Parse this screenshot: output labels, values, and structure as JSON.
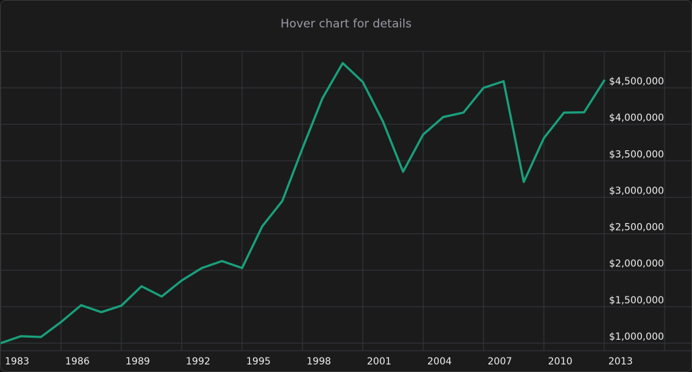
{
  "header": {
    "hint": "Hover chart for details"
  },
  "colors": {
    "background": "#1b1b1b",
    "grid": "#353840",
    "line": "#19a07d",
    "text": "#eeeeee",
    "hint": "#9a9aa8"
  },
  "chart_data": {
    "type": "line",
    "title": "",
    "xlabel": "",
    "ylabel": "",
    "xlim": [
      1982,
      2016
    ],
    "ylim": [
      900000,
      5000000
    ],
    "x_ticks": [
      1983,
      1986,
      1989,
      1992,
      1995,
      1998,
      2001,
      2004,
      2007,
      2010,
      2013
    ],
    "x_tick_labels": [
      "1983",
      "1986",
      "1989",
      "1992",
      "1995",
      "1998",
      "2001",
      "2004",
      "2007",
      "2010",
      "2013"
    ],
    "y_ticks": [
      1000000,
      1500000,
      2000000,
      2500000,
      3000000,
      3500000,
      4000000,
      4500000
    ],
    "y_tick_labels": [
      "$1,000,000",
      "$1,500,000",
      "$2,000,000",
      "$2,500,000",
      "$3,000,000",
      "$3,500,000",
      "$4,000,000",
      "$4,500,000"
    ],
    "grid": true,
    "legend": "none",
    "y_axis_position": "right",
    "series": [
      {
        "x": [
          1983,
          1984,
          1985,
          1986,
          1987,
          1988,
          1989,
          1990,
          1991,
          1992,
          1993,
          1994,
          1995,
          1996,
          1997,
          1998,
          1999,
          2000,
          2001,
          2002,
          2003,
          2004,
          2005,
          2006,
          2007,
          2008,
          2009,
          2010,
          2011,
          2012,
          2013
        ],
        "values": [
          1000000,
          1095000,
          1085000,
          1290000,
          1520000,
          1425000,
          1515000,
          1780000,
          1640000,
          1860000,
          2030000,
          2125000,
          2030000,
          2600000,
          2950000,
          3670000,
          4360000,
          4840000,
          4580000,
          4040000,
          3350000,
          3860000,
          4100000,
          4160000,
          4500000,
          4590000,
          3210000,
          3810000,
          4160000,
          4165000,
          4600000
        ]
      }
    ]
  }
}
